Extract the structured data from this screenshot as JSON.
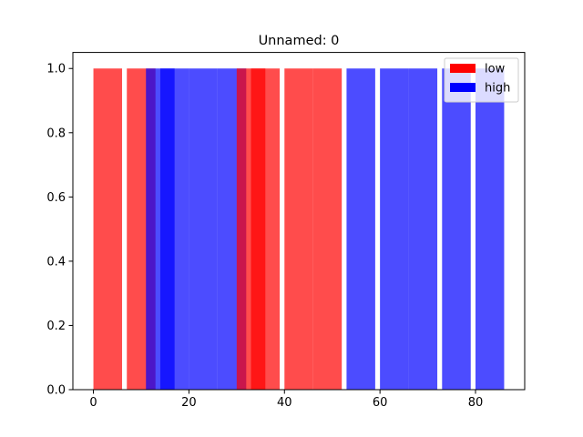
{
  "chart_data": {
    "type": "bar",
    "title": "Unnamed: 0",
    "xlabel": "",
    "ylabel": "",
    "xlim": [
      -4.3,
      90.3
    ],
    "ylim": [
      0,
      1.05
    ],
    "bar_width": 6,
    "xticks": [
      0,
      20,
      40,
      60,
      80
    ],
    "yticks": [
      0.0,
      0.2,
      0.4,
      0.6,
      0.8,
      1.0
    ],
    "xtick_labels": [
      "0",
      "20",
      "40",
      "60",
      "80"
    ],
    "ytick_labels": [
      "0.0",
      "0.2",
      "0.4",
      "0.6",
      "0.8",
      "1.0"
    ],
    "grid": false,
    "legend_position": "top-right",
    "series": [
      {
        "name": "low",
        "color": "#ff0000",
        "alpha": 0.7,
        "x": [
          3,
          10,
          33,
          36,
          43,
          49
        ],
        "values": [
          1,
          1,
          1,
          1,
          1,
          1
        ]
      },
      {
        "name": "high",
        "color": "#0000ff",
        "alpha": 0.7,
        "x": [
          14,
          17,
          23,
          29,
          56,
          63,
          69,
          76,
          83
        ],
        "values": [
          1,
          1,
          1,
          1,
          1,
          1,
          1,
          1,
          1
        ]
      }
    ],
    "draw_order": [
      {
        "series": 0,
        "index": 0
      },
      {
        "series": 0,
        "index": 1
      },
      {
        "series": 1,
        "index": 0
      },
      {
        "series": 1,
        "index": 1
      },
      {
        "series": 1,
        "index": 2
      },
      {
        "series": 1,
        "index": 3
      },
      {
        "series": 0,
        "index": 2
      },
      {
        "series": 0,
        "index": 3
      },
      {
        "series": 0,
        "index": 4
      },
      {
        "series": 0,
        "index": 5
      },
      {
        "series": 1,
        "index": 4
      },
      {
        "series": 1,
        "index": 5
      },
      {
        "series": 1,
        "index": 6
      },
      {
        "series": 1,
        "index": 7
      },
      {
        "series": 1,
        "index": 8
      }
    ]
  }
}
